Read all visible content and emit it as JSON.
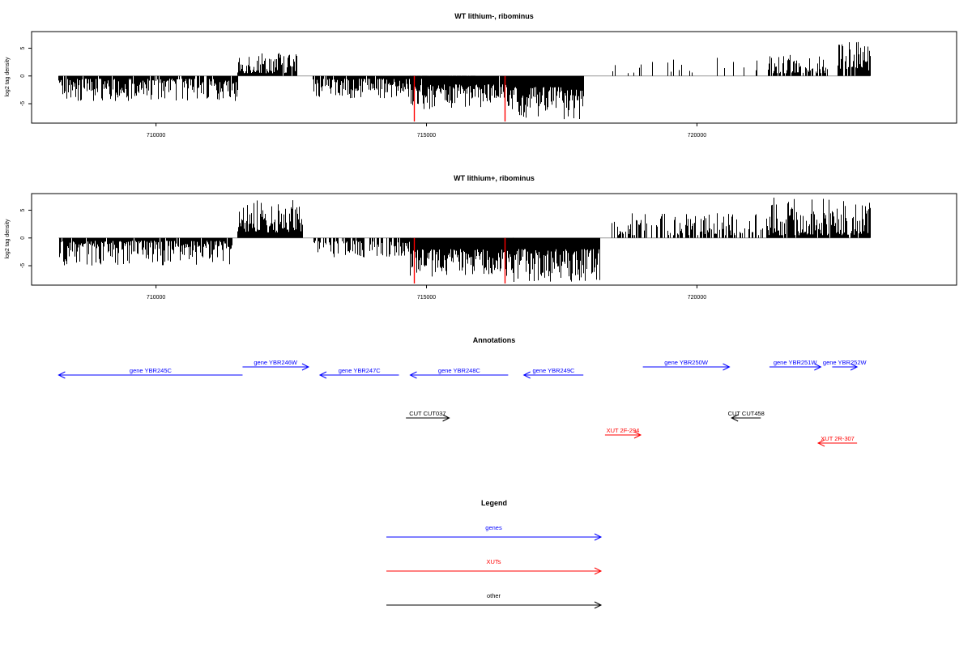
{
  "chart_data": [
    {
      "type": "bar",
      "title": "WT lithium-, ribominus",
      "xlabel": "",
      "ylabel": "log2 tag density",
      "xlim": [
        707700,
        724800
      ],
      "ylim": [
        -8.5,
        8
      ],
      "xticks": [
        710000,
        715000,
        720000
      ],
      "xtick_labels": [
        "710000",
        "715000",
        "720000"
      ],
      "yticks": [
        -5,
        0,
        5
      ],
      "ytick_labels": [
        "-5",
        "0",
        "5"
      ],
      "baseline": 0,
      "colors": {
        "bars": "#000000",
        "highlight": "#ff0000",
        "baseline": "#999999"
      },
      "segments": [
        {
          "from": 708200,
          "to": 711500,
          "sign": -1,
          "min": 0.5,
          "max": 4.5,
          "gap": 0.08
        },
        {
          "from": 711500,
          "to": 712600,
          "sign": 1,
          "min": 0.5,
          "max": 4.5,
          "gap": 0.05
        },
        {
          "from": 712900,
          "to": 715900,
          "sign": -1,
          "min": 0.5,
          "max": 4.0,
          "gap": 0.1
        },
        {
          "from": 714700,
          "to": 716500,
          "sign": -1,
          "min": 1.5,
          "max": 6.0,
          "gap": 0.03
        },
        {
          "from": 716500,
          "to": 717900,
          "sign": -1,
          "min": 2.0,
          "max": 8.0,
          "gap": 0.0
        },
        {
          "from": 718400,
          "to": 721300,
          "sign": 1,
          "min": 0.5,
          "max": 3.5,
          "gap": 0.9
        },
        {
          "from": 721300,
          "to": 722400,
          "sign": 1,
          "min": 0.5,
          "max": 4.0,
          "gap": 0.3
        },
        {
          "from": 722600,
          "to": 723200,
          "sign": 1,
          "min": 1.0,
          "max": 6.5,
          "gap": 0.1
        }
      ],
      "highlights": [
        {
          "x": 714770,
          "value": -8.2
        },
        {
          "x": 716450,
          "value": -8.2
        }
      ]
    },
    {
      "type": "bar",
      "title": "WT lithium+, ribominus",
      "xlabel": "",
      "ylabel": "log2 tag density",
      "xlim": [
        707700,
        724800
      ],
      "ylim": [
        -8.5,
        8
      ],
      "xticks": [
        710000,
        715000,
        720000
      ],
      "xtick_labels": [
        "710000",
        "715000",
        "720000"
      ],
      "yticks": [
        -5,
        0,
        5
      ],
      "ytick_labels": [
        "-5",
        "0",
        "5"
      ],
      "baseline": 0,
      "colors": {
        "bars": "#000000",
        "highlight": "#ff0000",
        "baseline": "#999999"
      },
      "segments": [
        {
          "from": 708200,
          "to": 711400,
          "sign": -1,
          "min": 0.5,
          "max": 5.0,
          "gap": 0.05
        },
        {
          "from": 711500,
          "to": 712700,
          "sign": 1,
          "min": 1.0,
          "max": 7.0,
          "gap": 0.0
        },
        {
          "from": 712900,
          "to": 714700,
          "sign": -1,
          "min": 0.5,
          "max": 3.5,
          "gap": 0.4
        },
        {
          "from": 714700,
          "to": 716600,
          "sign": -1,
          "min": 2.0,
          "max": 7.0,
          "gap": 0.0
        },
        {
          "from": 716600,
          "to": 718200,
          "sign": -1,
          "min": 2.0,
          "max": 8.0,
          "gap": 0.0
        },
        {
          "from": 718400,
          "to": 721300,
          "sign": 1,
          "min": 0.5,
          "max": 4.5,
          "gap": 0.4
        },
        {
          "from": 721300,
          "to": 723200,
          "sign": 1,
          "min": 0.5,
          "max": 7.5,
          "gap": 0.05
        }
      ],
      "highlights": [
        {
          "x": 714770,
          "value": -8.2
        },
        {
          "x": 716450,
          "value": -8.2
        }
      ]
    }
  ],
  "annotations": {
    "title": "Annotations",
    "features": [
      {
        "label": "gene YBR245C",
        "start": 708200,
        "end": 711600,
        "strand": "-",
        "kind": "gene",
        "row": 1
      },
      {
        "label": "gene YBR246W",
        "start": 711600,
        "end": 712820,
        "strand": "+",
        "kind": "gene",
        "row": 0
      },
      {
        "label": "gene YBR247C",
        "start": 713030,
        "end": 714490,
        "strand": "-",
        "kind": "gene",
        "row": 1
      },
      {
        "label": "gene YBR248C",
        "start": 714700,
        "end": 716510,
        "strand": "-",
        "kind": "gene",
        "row": 1
      },
      {
        "label": "gene YBR249C",
        "start": 716800,
        "end": 717900,
        "strand": "-",
        "kind": "gene",
        "row": 1
      },
      {
        "label": "gene YBR250W",
        "start": 719000,
        "end": 720600,
        "strand": "+",
        "kind": "gene",
        "row": 0
      },
      {
        "label": "gene YBR251W",
        "start": 721340,
        "end": 722290,
        "strand": "+",
        "kind": "gene",
        "row": 0
      },
      {
        "label": "gene YBR252W",
        "start": 722500,
        "end": 722960,
        "strand": "+",
        "kind": "gene",
        "row": 0
      },
      {
        "label": "CUT CUT037",
        "start": 714620,
        "end": 715420,
        "strand": "+",
        "kind": "other",
        "row": 2
      },
      {
        "label": "XUT 2F-294",
        "start": 718300,
        "end": 718960,
        "strand": "+",
        "kind": "xut",
        "row": 3
      },
      {
        "label": "CUT CUT458",
        "start": 720640,
        "end": 721180,
        "strand": "-",
        "kind": "other",
        "row": 2
      },
      {
        "label": "XUT 2R-307",
        "start": 722240,
        "end": 722960,
        "strand": "-",
        "kind": "xut",
        "row": 4
      }
    ]
  },
  "legend": {
    "title": "Legend",
    "items": [
      {
        "label": "genes",
        "color": "#0000ff"
      },
      {
        "label": "XUTs",
        "color": "#ff0000"
      },
      {
        "label": "other",
        "color": "#000000"
      }
    ]
  },
  "colors": {
    "gene": "#0000ff",
    "xut": "#ff0000",
    "other": "#000000",
    "axis": "#000000"
  }
}
